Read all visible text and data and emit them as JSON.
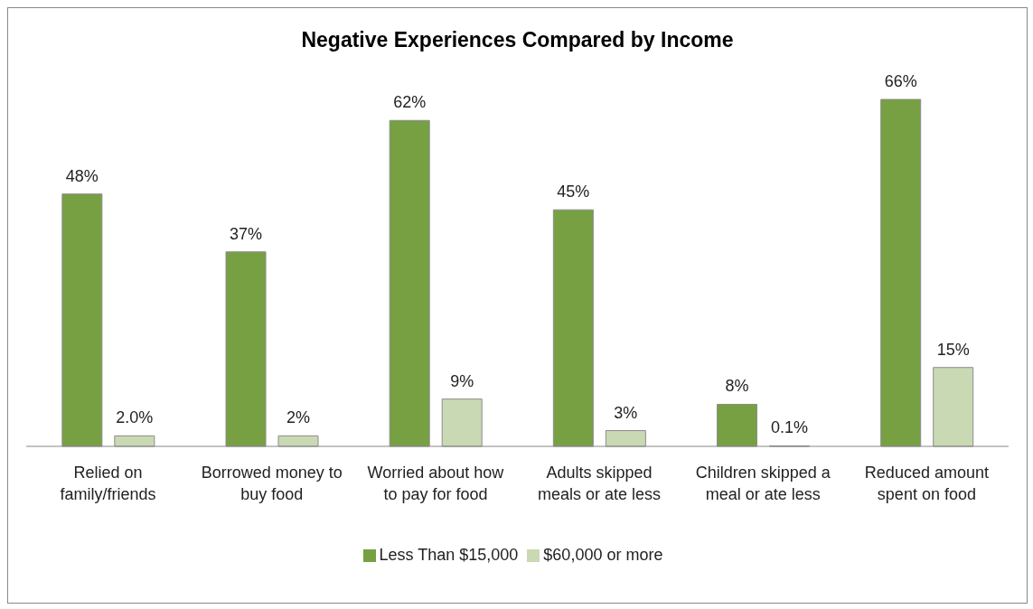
{
  "chart_data": {
    "type": "bar",
    "title": "Negative Experiences Compared by Income",
    "categories": [
      "Relied on family/friends",
      "Borrowed money to buy food",
      "Worried about how to pay for food",
      "Adults skipped meals or ate less",
      "Children skipped a meal or ate less",
      "Reduced amount spent on food"
    ],
    "series": [
      {
        "name": "Less Than $15,000",
        "color": "#77a043",
        "values": [
          48,
          37,
          62,
          45,
          8,
          66
        ],
        "value_labels": [
          "48%",
          "37%",
          "62%",
          "45%",
          "8%",
          "66%"
        ]
      },
      {
        "name": "$60,000 or more",
        "color": "#c9d9b3",
        "values": [
          2.0,
          2,
          9,
          3,
          0.1,
          15
        ],
        "value_labels": [
          "2.0%",
          "2%",
          "9%",
          "3%",
          "0.1%",
          "15%"
        ]
      }
    ],
    "legend": "bottom",
    "grid": false
  }
}
